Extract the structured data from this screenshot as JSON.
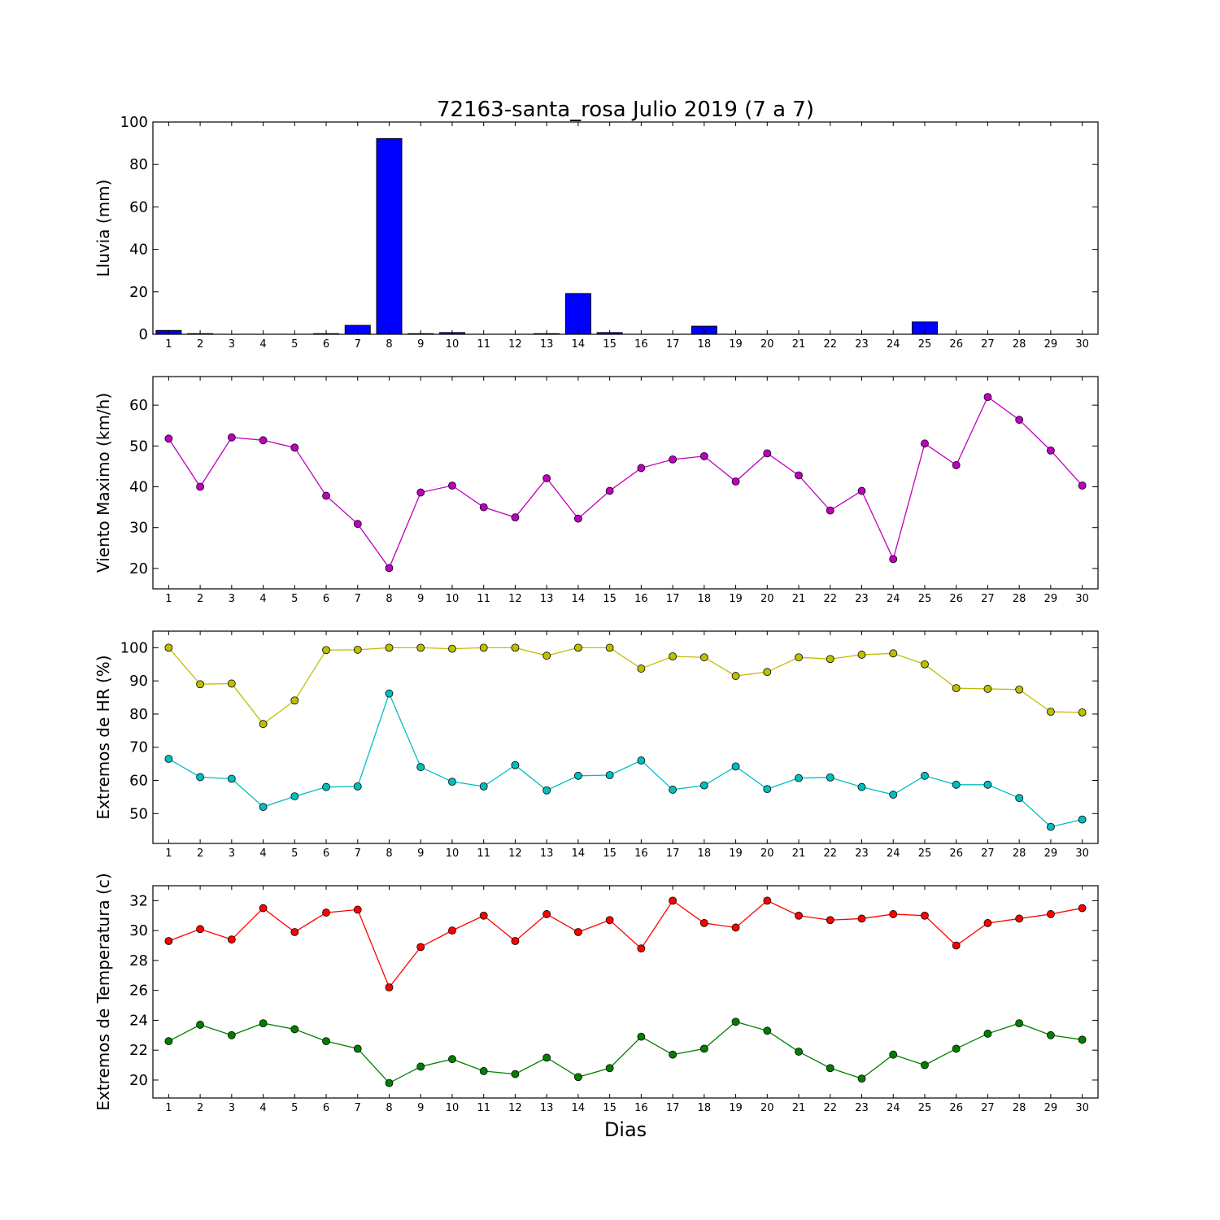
{
  "chart_data": [
    {
      "type": "bar",
      "title": "72163-santa_rosa Julio 2019  (7 a 7)",
      "ylabel": "Lluvia (mm)",
      "xlabel": "",
      "x": [
        1,
        2,
        3,
        4,
        5,
        6,
        7,
        8,
        9,
        10,
        11,
        12,
        13,
        14,
        15,
        16,
        17,
        18,
        19,
        20,
        21,
        22,
        23,
        24,
        25,
        26,
        27,
        28,
        29,
        30
      ],
      "ylim": [
        0,
        100
      ],
      "yticks": [
        0,
        20,
        40,
        60,
        80,
        100
      ],
      "colors": {
        "bar": "#0000ff"
      },
      "series": [
        {
          "values": [
            1.8,
            0.3,
            0,
            0,
            0,
            0.3,
            4.2,
            92.2,
            0.3,
            0.8,
            0,
            0,
            0.3,
            19.2,
            0.8,
            0,
            0,
            3.8,
            0,
            0,
            0,
            0,
            0,
            0,
            5.8,
            0,
            0,
            0,
            0,
            0
          ]
        }
      ]
    },
    {
      "type": "line",
      "ylabel": "Viento Maximo (km/h)",
      "x": [
        1,
        2,
        3,
        4,
        5,
        6,
        7,
        8,
        9,
        10,
        11,
        12,
        13,
        14,
        15,
        16,
        17,
        18,
        19,
        20,
        21,
        22,
        23,
        24,
        25,
        26,
        27,
        28,
        29,
        30
      ],
      "ylim": [
        15,
        67
      ],
      "yticks": [
        20,
        30,
        40,
        50,
        60
      ],
      "series": [
        {
          "color": "#bf00bf",
          "values": [
            51.8,
            40.0,
            52.1,
            51.4,
            49.6,
            37.8,
            30.9,
            20.1,
            38.6,
            40.3,
            35.0,
            32.5,
            42.1,
            32.2,
            39.0,
            44.6,
            46.7,
            47.5,
            41.3,
            48.2,
            42.8,
            34.2,
            39.0,
            22.3,
            50.6,
            45.3,
            62.0,
            56.4,
            48.9,
            40.3
          ]
        }
      ]
    },
    {
      "type": "line",
      "ylabel": "Extremos de HR (%)",
      "x": [
        1,
        2,
        3,
        4,
        5,
        6,
        7,
        8,
        9,
        10,
        11,
        12,
        13,
        14,
        15,
        16,
        17,
        18,
        19,
        20,
        21,
        22,
        23,
        24,
        25,
        26,
        27,
        28,
        29,
        30
      ],
      "ylim": [
        41,
        105
      ],
      "yticks": [
        50,
        60,
        70,
        80,
        90,
        100
      ],
      "series": [
        {
          "color": "#bfbf00",
          "values": [
            100,
            89,
            89.2,
            77,
            84.1,
            99.3,
            99.4,
            100,
            100,
            99.7,
            100,
            100,
            97.6,
            100,
            100,
            93.7,
            97.4,
            97.1,
            91.5,
            92.7,
            97.1,
            96.6,
            97.9,
            98.3,
            95,
            87.8,
            87.6,
            87.4,
            80.7,
            80.5
          ]
        },
        {
          "color": "#00bfbf",
          "values": [
            66.5,
            61,
            60.5,
            52,
            55.2,
            58,
            58.2,
            86.2,
            64,
            59.6,
            58.2,
            64.6,
            57,
            61.4,
            61.6,
            66,
            57.2,
            58.5,
            64.2,
            57.4,
            60.7,
            60.9,
            58,
            55.7,
            61.4,
            58.7,
            58.7,
            54.7,
            46,
            48.2
          ]
        }
      ]
    },
    {
      "type": "line",
      "ylabel": "Extremos de Temperatura (c)",
      "xlabel": "Dias",
      "x": [
        1,
        2,
        3,
        4,
        5,
        6,
        7,
        8,
        9,
        10,
        11,
        12,
        13,
        14,
        15,
        16,
        17,
        18,
        19,
        20,
        21,
        22,
        23,
        24,
        25,
        26,
        27,
        28,
        29,
        30
      ],
      "ylim": [
        18.8,
        33.0
      ],
      "yticks": [
        20,
        22,
        24,
        26,
        28,
        30,
        32
      ],
      "series": [
        {
          "color": "#ff0000",
          "values": [
            29.3,
            30.1,
            29.4,
            31.5,
            29.9,
            31.2,
            31.4,
            26.2,
            28.9,
            30.0,
            31.0,
            29.3,
            31.1,
            29.9,
            30.7,
            28.8,
            32.0,
            30.5,
            30.2,
            32.0,
            31.0,
            30.7,
            30.8,
            31.1,
            31.0,
            29.0,
            30.5,
            30.8,
            31.1,
            31.5
          ]
        },
        {
          "color": "#008000",
          "values": [
            22.6,
            23.7,
            23.0,
            23.8,
            23.4,
            22.6,
            22.1,
            19.8,
            20.9,
            21.4,
            20.6,
            20.4,
            21.5,
            20.2,
            20.8,
            22.9,
            21.7,
            22.1,
            23.9,
            23.3,
            21.9,
            20.8,
            20.1,
            21.7,
            21.0,
            22.1,
            23.1,
            23.8,
            23.0,
            22.7
          ]
        }
      ]
    }
  ]
}
